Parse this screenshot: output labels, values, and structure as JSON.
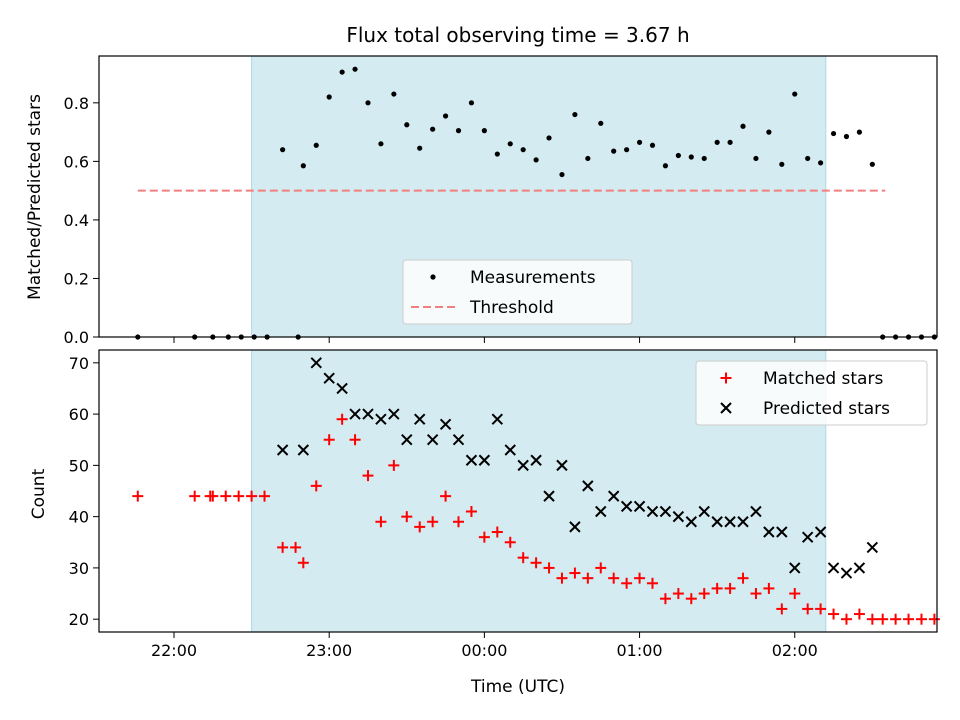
{
  "chart_data": [
    {
      "type": "scatter",
      "title": "Flux total observing time = 3.67 h",
      "xlabel": "",
      "ylabel": "Matched/Predicted stars",
      "xlim": [
        "21:31",
        "02:55"
      ],
      "ylim": [
        0,
        0.96
      ],
      "yticks": [
        "0.0",
        "0.2",
        "0.4",
        "0.6",
        "0.8"
      ],
      "ytick_values": [
        0,
        0.2,
        0.4,
        0.6,
        0.8
      ],
      "xticks_values": [
        "22:00",
        "23:00",
        "00:00",
        "01:00",
        "02:00"
      ],
      "shaded_span": [
        "22:30",
        "02:12"
      ],
      "shade_color": "#d4ebf1",
      "threshold": {
        "name": "Threshold",
        "value": 0.5,
        "x_range": [
          "21:46",
          "02:35"
        ],
        "color": "#f08080"
      },
      "legend": {
        "placement": "lower-center",
        "entries": [
          "Measurements",
          "Threshold"
        ]
      },
      "series": [
        {
          "name": "Measurements",
          "marker": "dot",
          "color": "#000000",
          "points": [
            [
              "21:46",
              0
            ],
            [
              "22:08",
              0
            ],
            [
              "22:15",
              0
            ],
            [
              "22:21",
              0
            ],
            [
              "22:26",
              0
            ],
            [
              "22:31",
              0
            ],
            [
              "22:36",
              0
            ],
            [
              "22:48",
              0
            ],
            [
              "22:42",
              0.64
            ],
            [
              "22:50",
              0.585
            ],
            [
              "22:55",
              0.655
            ],
            [
              "23:00",
              0.82
            ],
            [
              "23:05",
              0.905
            ],
            [
              "23:10",
              0.915
            ],
            [
              "23:15",
              0.8
            ],
            [
              "23:20",
              0.66
            ],
            [
              "23:25",
              0.83
            ],
            [
              "23:30",
              0.725
            ],
            [
              "23:35",
              0.645
            ],
            [
              "23:40",
              0.71
            ],
            [
              "23:45",
              0.755
            ],
            [
              "23:50",
              0.705
            ],
            [
              "23:55",
              0.8
            ],
            [
              "00:00",
              0.705
            ],
            [
              "00:05",
              0.625
            ],
            [
              "00:10",
              0.66
            ],
            [
              "00:15",
              0.64
            ],
            [
              "00:20",
              0.605
            ],
            [
              "00:25",
              0.68
            ],
            [
              "00:30",
              0.555
            ],
            [
              "00:35",
              0.76
            ],
            [
              "00:40",
              0.61
            ],
            [
              "00:45",
              0.73
            ],
            [
              "00:50",
              0.635
            ],
            [
              "00:55",
              0.64
            ],
            [
              "01:00",
              0.665
            ],
            [
              "01:05",
              0.655
            ],
            [
              "01:10",
              0.585
            ],
            [
              "01:15",
              0.62
            ],
            [
              "01:20",
              0.615
            ],
            [
              "01:25",
              0.61
            ],
            [
              "01:30",
              0.665
            ],
            [
              "01:35",
              0.665
            ],
            [
              "01:40",
              0.72
            ],
            [
              "01:45",
              0.61
            ],
            [
              "01:50",
              0.7
            ],
            [
              "01:55",
              0.59
            ],
            [
              "02:00",
              0.83
            ],
            [
              "02:05",
              0.61
            ],
            [
              "02:10",
              0.595
            ],
            [
              "02:15",
              0.695
            ],
            [
              "02:20",
              0.685
            ],
            [
              "02:25",
              0.7
            ],
            [
              "02:30",
              0.59
            ],
            [
              "02:34",
              0
            ],
            [
              "02:39",
              0
            ],
            [
              "02:44",
              0
            ],
            [
              "02:49",
              0
            ],
            [
              "02:54",
              0
            ]
          ]
        }
      ]
    },
    {
      "type": "scatter",
      "title": "",
      "xlabel": "Time (UTC)",
      "ylabel": "Count",
      "xlim": [
        "21:31",
        "02:55"
      ],
      "ylim": [
        17.5,
        72.5
      ],
      "yticks": [
        "20",
        "30",
        "40",
        "50",
        "60",
        "70"
      ],
      "ytick_values": [
        20,
        30,
        40,
        50,
        60,
        70
      ],
      "xticks": [
        "22:00",
        "23:00",
        "00:00",
        "01:00",
        "02:00"
      ],
      "shaded_span": [
        "22:30",
        "02:12"
      ],
      "shade_color": "#d4ebf1",
      "legend": {
        "placement": "upper-right",
        "entries": [
          "Matched stars",
          "Predicted stars"
        ]
      },
      "series": [
        {
          "name": "Matched stars",
          "marker": "plus",
          "color": "#ff0000",
          "points": [
            [
              "21:46",
              44
            ],
            [
              "22:08",
              44
            ],
            [
              "22:14",
              44
            ],
            [
              "22:15",
              44
            ],
            [
              "22:20",
              44
            ],
            [
              "22:25",
              44
            ],
            [
              "22:30",
              44
            ],
            [
              "22:35",
              44
            ],
            [
              "22:42",
              34
            ],
            [
              "22:47",
              34
            ],
            [
              "22:50",
              31
            ],
            [
              "22:55",
              46
            ],
            [
              "23:00",
              55
            ],
            [
              "23:05",
              59
            ],
            [
              "23:10",
              55
            ],
            [
              "23:15",
              48
            ],
            [
              "23:20",
              39
            ],
            [
              "23:25",
              50
            ],
            [
              "23:30",
              40
            ],
            [
              "23:35",
              38
            ],
            [
              "23:40",
              39
            ],
            [
              "23:45",
              44
            ],
            [
              "23:50",
              39
            ],
            [
              "23:55",
              41
            ],
            [
              "00:00",
              36
            ],
            [
              "00:05",
              37
            ],
            [
              "00:10",
              35
            ],
            [
              "00:15",
              32
            ],
            [
              "00:20",
              31
            ],
            [
              "00:25",
              30
            ],
            [
              "00:30",
              28
            ],
            [
              "00:35",
              29
            ],
            [
              "00:40",
              28
            ],
            [
              "00:45",
              30
            ],
            [
              "00:50",
              28
            ],
            [
              "00:55",
              27
            ],
            [
              "01:00",
              28
            ],
            [
              "01:05",
              27
            ],
            [
              "01:10",
              24
            ],
            [
              "01:15",
              25
            ],
            [
              "01:20",
              24
            ],
            [
              "01:25",
              25
            ],
            [
              "01:30",
              26
            ],
            [
              "01:35",
              26
            ],
            [
              "01:40",
              28
            ],
            [
              "01:45",
              25
            ],
            [
              "01:50",
              26
            ],
            [
              "01:55",
              22
            ],
            [
              "02:00",
              25
            ],
            [
              "02:05",
              22
            ],
            [
              "02:10",
              22
            ],
            [
              "02:15",
              21
            ],
            [
              "02:20",
              20
            ],
            [
              "02:25",
              21
            ],
            [
              "02:30",
              20
            ],
            [
              "02:34",
              20
            ],
            [
              "02:39",
              20
            ],
            [
              "02:44",
              20
            ],
            [
              "02:49",
              20
            ],
            [
              "02:54",
              20
            ]
          ]
        },
        {
          "name": "Predicted stars",
          "marker": "x",
          "color": "#000000",
          "points": [
            [
              "22:42",
              53
            ],
            [
              "22:50",
              53
            ],
            [
              "22:55",
              70
            ],
            [
              "23:00",
              67
            ],
            [
              "23:05",
              65
            ],
            [
              "23:10",
              60
            ],
            [
              "23:15",
              60
            ],
            [
              "23:20",
              59
            ],
            [
              "23:25",
              60
            ],
            [
              "23:30",
              55
            ],
            [
              "23:35",
              59
            ],
            [
              "23:40",
              55
            ],
            [
              "23:45",
              58
            ],
            [
              "23:50",
              55
            ],
            [
              "23:55",
              51
            ],
            [
              "00:00",
              51
            ],
            [
              "00:05",
              59
            ],
            [
              "00:10",
              53
            ],
            [
              "00:15",
              50
            ],
            [
              "00:20",
              51
            ],
            [
              "00:25",
              44
            ],
            [
              "00:30",
              50
            ],
            [
              "00:35",
              38
            ],
            [
              "00:40",
              46
            ],
            [
              "00:45",
              41
            ],
            [
              "00:50",
              44
            ],
            [
              "00:55",
              42
            ],
            [
              "01:00",
              42
            ],
            [
              "01:05",
              41
            ],
            [
              "01:10",
              41
            ],
            [
              "01:15",
              40
            ],
            [
              "01:20",
              39
            ],
            [
              "01:25",
              41
            ],
            [
              "01:30",
              39
            ],
            [
              "01:35",
              39
            ],
            [
              "01:40",
              39
            ],
            [
              "01:45",
              41
            ],
            [
              "01:50",
              37
            ],
            [
              "01:55",
              37
            ],
            [
              "02:00",
              30
            ],
            [
              "02:05",
              36
            ],
            [
              "02:10",
              37
            ],
            [
              "02:15",
              30
            ],
            [
              "02:20",
              29
            ],
            [
              "02:25",
              30
            ],
            [
              "02:30",
              34
            ]
          ]
        }
      ]
    }
  ]
}
